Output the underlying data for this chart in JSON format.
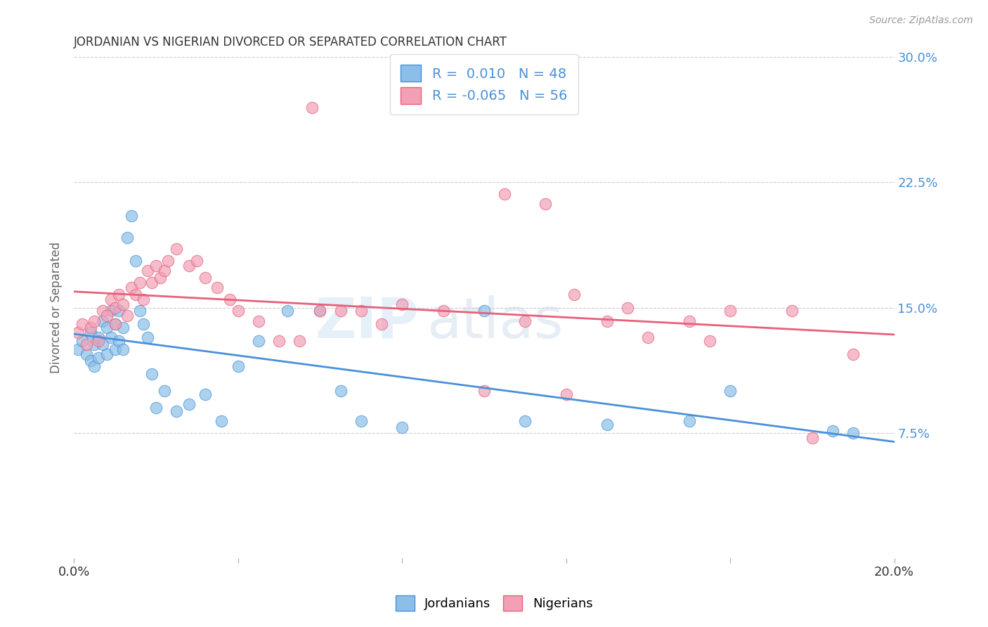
{
  "title": "JORDANIAN VS NIGERIAN DIVORCED OR SEPARATED CORRELATION CHART",
  "source": "Source: ZipAtlas.com",
  "ylabel": "Divorced or Separated",
  "legend_label1": "Jordanians",
  "legend_label2": "Nigerians",
  "R1": " 0.010",
  "N1": "48",
  "R2": "-0.065",
  "N2": "56",
  "watermark_zip": "ZIP",
  "watermark_atlas": "atlas",
  "xlim": [
    0.0,
    0.2
  ],
  "ylim": [
    0.0,
    0.3
  ],
  "yticks": [
    0.075,
    0.15,
    0.225,
    0.3
  ],
  "ytick_labels": [
    "7.5%",
    "15.0%",
    "22.5%",
    "30.0%"
  ],
  "xticks": [
    0.0,
    0.04,
    0.08,
    0.12,
    0.16,
    0.2
  ],
  "xtick_labels": [
    "0.0%",
    "",
    "",
    "",
    "",
    "20.0%"
  ],
  "color_jordanian": "#8BBFE8",
  "color_nigerian": "#F2A0B5",
  "line_color_jordanian": "#4A90D9",
  "line_color_nigerian": "#E8607A",
  "background_color": "#FFFFFF",
  "jordanian_x": [
    0.001,
    0.002,
    0.003,
    0.004,
    0.004,
    0.005,
    0.005,
    0.006,
    0.006,
    0.007,
    0.007,
    0.008,
    0.008,
    0.009,
    0.009,
    0.01,
    0.01,
    0.011,
    0.011,
    0.012,
    0.012,
    0.013,
    0.014,
    0.015,
    0.016,
    0.017,
    0.018,
    0.019,
    0.02,
    0.022,
    0.025,
    0.028,
    0.032,
    0.036,
    0.04,
    0.045,
    0.052,
    0.06,
    0.065,
    0.07,
    0.08,
    0.1,
    0.11,
    0.13,
    0.15,
    0.16,
    0.185,
    0.19
  ],
  "jordanian_y": [
    0.125,
    0.13,
    0.122,
    0.118,
    0.135,
    0.128,
    0.115,
    0.132,
    0.12,
    0.142,
    0.128,
    0.138,
    0.122,
    0.148,
    0.132,
    0.14,
    0.125,
    0.148,
    0.13,
    0.138,
    0.125,
    0.192,
    0.205,
    0.178,
    0.148,
    0.14,
    0.132,
    0.11,
    0.09,
    0.1,
    0.088,
    0.092,
    0.098,
    0.082,
    0.115,
    0.13,
    0.148,
    0.148,
    0.1,
    0.082,
    0.078,
    0.148,
    0.082,
    0.08,
    0.082,
    0.1,
    0.076,
    0.075
  ],
  "nigerian_x": [
    0.001,
    0.002,
    0.003,
    0.004,
    0.005,
    0.006,
    0.007,
    0.008,
    0.009,
    0.01,
    0.01,
    0.011,
    0.012,
    0.013,
    0.014,
    0.015,
    0.016,
    0.017,
    0.018,
    0.019,
    0.02,
    0.021,
    0.022,
    0.023,
    0.025,
    0.028,
    0.03,
    0.032,
    0.035,
    0.038,
    0.04,
    0.045,
    0.05,
    0.055,
    0.06,
    0.065,
    0.07,
    0.075,
    0.08,
    0.09,
    0.1,
    0.11,
    0.12,
    0.13,
    0.14,
    0.15,
    0.155,
    0.16,
    0.175,
    0.18,
    0.058,
    0.105,
    0.115,
    0.122,
    0.135,
    0.19
  ],
  "nigerian_y": [
    0.135,
    0.14,
    0.128,
    0.138,
    0.142,
    0.13,
    0.148,
    0.145,
    0.155,
    0.15,
    0.14,
    0.158,
    0.152,
    0.145,
    0.162,
    0.158,
    0.165,
    0.155,
    0.172,
    0.165,
    0.175,
    0.168,
    0.172,
    0.178,
    0.185,
    0.175,
    0.178,
    0.168,
    0.162,
    0.155,
    0.148,
    0.142,
    0.13,
    0.13,
    0.148,
    0.148,
    0.148,
    0.14,
    0.152,
    0.148,
    0.1,
    0.142,
    0.098,
    0.142,
    0.132,
    0.142,
    0.13,
    0.148,
    0.148,
    0.072,
    0.27,
    0.218,
    0.212,
    0.158,
    0.15,
    0.122
  ]
}
